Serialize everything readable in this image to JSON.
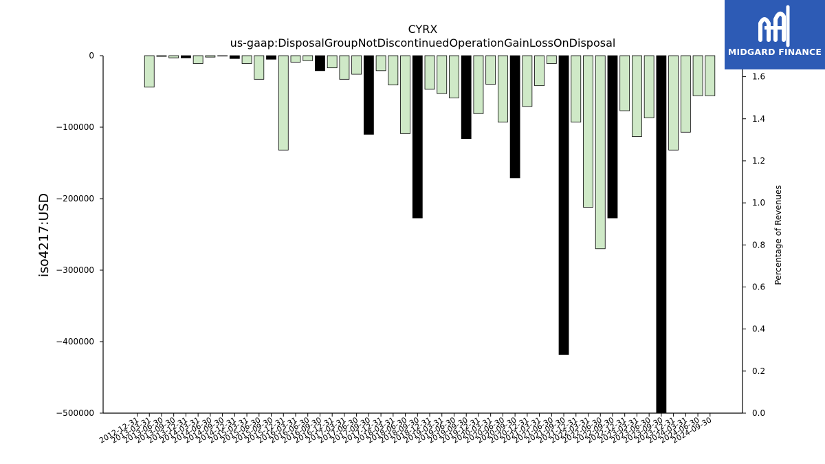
{
  "chart_data": {
    "type": "bar",
    "title": "CYRX",
    "subtitle": "us-gaap:DisposalGroupNotDiscontinuedOperationGainLossOnDisposal",
    "ylabel": "iso4217:USD",
    "ylabel_right": "Percentage of Revenues",
    "ylim": [
      -500000,
      0
    ],
    "ylim_right": [
      0.0,
      1.7
    ],
    "yticks": [
      0,
      -100000,
      -200000,
      -300000,
      -400000,
      -500000
    ],
    "yticks_right": [
      0.0,
      0.2,
      0.4,
      0.6,
      0.8,
      1.0,
      1.2,
      1.4,
      1.6
    ],
    "categories": [
      "2012-12-31",
      "2013-03-31",
      "2013-06-30",
      "2013-09-30",
      "2013-12-31",
      "2014-03-31",
      "2014-06-30",
      "2014-09-30",
      "2014-12-31",
      "2015-03-31",
      "2015-06-30",
      "2015-09-30",
      "2015-12-31",
      "2016-03-31",
      "2016-06-30",
      "2016-09-30",
      "2016-12-31",
      "2017-03-31",
      "2017-06-30",
      "2017-09-30",
      "2017-12-31",
      "2018-03-31",
      "2018-06-30",
      "2018-09-30",
      "2018-12-31",
      "2019-03-31",
      "2019-06-30",
      "2019-09-30",
      "2019-12-31",
      "2020-03-31",
      "2020-06-30",
      "2020-09-30",
      "2020-12-31",
      "2021-03-31",
      "2021-06-30",
      "2021-09-30",
      "2021-12-31",
      "2022-03-31",
      "2022-06-30",
      "2022-09-30",
      "2022-12-31",
      "2023-03-31",
      "2023-06-30",
      "2023-09-30",
      "2023-12-31",
      "2024-03-31",
      "2024-06-30",
      "2024-09-30"
    ],
    "series": [
      {
        "values": [
          0,
          -44000,
          -1000,
          -3000,
          -3000,
          -11000,
          -2000,
          -500,
          -4000,
          -11000,
          -33000,
          -5000,
          -132000,
          -9000,
          -7000,
          -21000,
          -17000,
          -33000,
          -26000,
          -110000,
          -21000,
          -41000,
          -109000,
          -227000,
          -47000,
          -53000,
          -59000,
          -116000,
          -81000,
          -40000,
          -93000,
          -171000,
          -71000,
          -42000,
          -11000,
          -418000,
          -93000,
          -212000,
          -270000,
          -227000,
          -77000,
          -113000,
          -87000,
          -500000,
          -132000,
          -107000,
          -56000,
          -56000
        ],
        "fill_colors": [
          "#cfe9c7",
          "#cfe9c7",
          "#cfe9c7",
          "#cfe9c7",
          "#000000",
          "#cfe9c7",
          "#cfe9c7",
          "#cfe9c7",
          "#000000",
          "#cfe9c7",
          "#cfe9c7",
          "#000000",
          "#cfe9c7",
          "#cfe9c7",
          "#cfe9c7",
          "#000000",
          "#cfe9c7",
          "#cfe9c7",
          "#cfe9c7",
          "#000000",
          "#cfe9c7",
          "#cfe9c7",
          "#cfe9c7",
          "#000000",
          "#cfe9c7",
          "#cfe9c7",
          "#cfe9c7",
          "#000000",
          "#cfe9c7",
          "#cfe9c7",
          "#cfe9c7",
          "#000000",
          "#cfe9c7",
          "#cfe9c7",
          "#cfe9c7",
          "#000000",
          "#cfe9c7",
          "#cfe9c7",
          "#cfe9c7",
          "#000000",
          "#cfe9c7",
          "#cfe9c7",
          "#cfe9c7",
          "#000000",
          "#cfe9c7",
          "#cfe9c7",
          "#cfe9c7",
          "#cfe9c7"
        ]
      }
    ],
    "colors": {
      "quarterly": "#cfe9c7",
      "annual": "#000000",
      "edge": "#000000"
    },
    "grid": false
  },
  "logo": {
    "text": "MIDGARD FINANCE",
    "background": "#2d5bb5"
  }
}
